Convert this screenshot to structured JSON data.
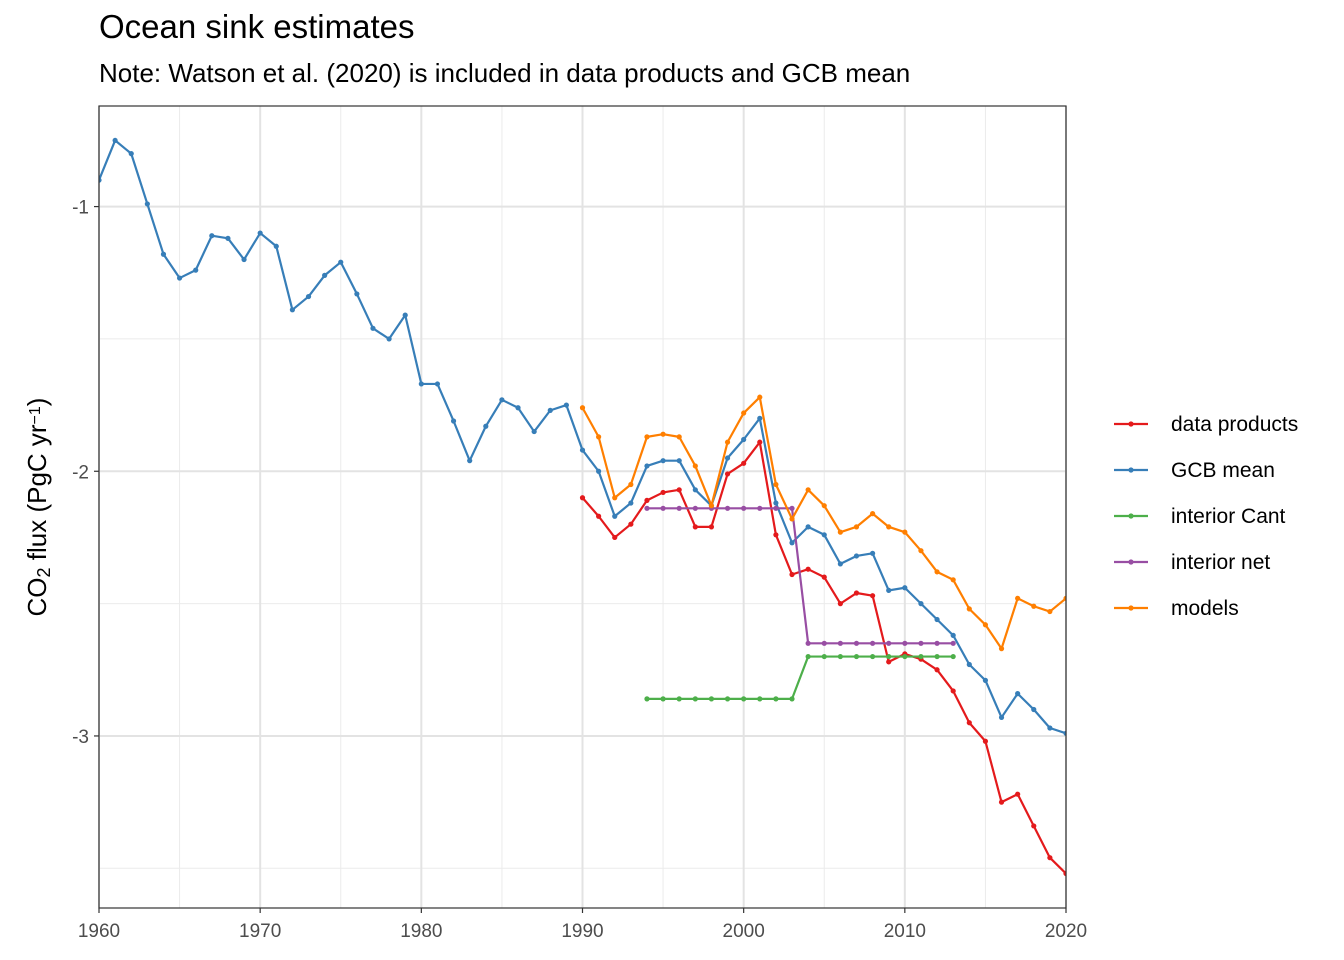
{
  "chart_data": {
    "type": "line",
    "title": "Ocean sink estimates",
    "subtitle": "Note: Watson et al. (2020) is included in data products and GCB mean",
    "xlabel": "",
    "ylabel": {
      "prefix": "CO",
      "sub": "2",
      "middle": " flux (PgC yr",
      "sup": "−1",
      "suffix": ")"
    },
    "xlim": [
      1960,
      2020
    ],
    "ylim": [
      -3.65,
      -0.62
    ],
    "x_ticks": [
      1960,
      1970,
      1980,
      1990,
      2000,
      2010,
      2020
    ],
    "x_tick_labels": [
      "1960",
      "1970",
      "1980",
      "1990",
      "2000",
      "2010",
      "2020"
    ],
    "y_ticks": [
      -1,
      -2,
      -3
    ],
    "y_tick_labels": [
      "-1",
      "-2",
      "-3"
    ],
    "y_minor": [
      -0.5,
      -1.5,
      -2.5,
      -3.5
    ],
    "grid": true,
    "legend_position": "right",
    "series": [
      {
        "name": "data products",
        "color": "#e41a1c",
        "x": [
          1990,
          1991,
          1992,
          1993,
          1994,
          1995,
          1996,
          1997,
          1998,
          1999,
          2000,
          2001,
          2002,
          2003,
          2004,
          2005,
          2006,
          2007,
          2008,
          2009,
          2010,
          2011,
          2012,
          2013,
          2014,
          2015,
          2016,
          2017,
          2018,
          2019,
          2020
        ],
        "y": [
          -2.1,
          -2.17,
          -2.25,
          -2.2,
          -2.11,
          -2.08,
          -2.07,
          -2.21,
          -2.21,
          -2.01,
          -1.97,
          -1.89,
          -2.24,
          -2.39,
          -2.37,
          -2.4,
          -2.5,
          -2.46,
          -2.47,
          -2.72,
          -2.69,
          -2.71,
          -2.75,
          -2.83,
          -2.95,
          -3.02,
          -3.25,
          -3.22,
          -3.34,
          -3.46,
          -3.52
        ]
      },
      {
        "name": "GCB mean",
        "color": "#377eb8",
        "x": [
          1959,
          1960,
          1961,
          1962,
          1963,
          1964,
          1965,
          1966,
          1967,
          1968,
          1969,
          1970,
          1971,
          1972,
          1973,
          1974,
          1975,
          1976,
          1977,
          1978,
          1979,
          1980,
          1981,
          1982,
          1983,
          1984,
          1985,
          1986,
          1987,
          1988,
          1989,
          1990,
          1991,
          1992,
          1993,
          1994,
          1995,
          1996,
          1997,
          1998,
          1999,
          2000,
          2001,
          2002,
          2003,
          2004,
          2005,
          2006,
          2007,
          2008,
          2009,
          2010,
          2011,
          2012,
          2013,
          2014,
          2015,
          2016,
          2017,
          2018,
          2019,
          2020
        ],
        "y": [
          -0.95,
          -0.9,
          -0.75,
          -0.8,
          -0.99,
          -1.18,
          -1.27,
          -1.24,
          -1.11,
          -1.12,
          -1.2,
          -1.1,
          -1.15,
          -1.39,
          -1.34,
          -1.26,
          -1.21,
          -1.33,
          -1.46,
          -1.5,
          -1.41,
          -1.67,
          -1.67,
          -1.81,
          -1.96,
          -1.83,
          -1.73,
          -1.76,
          -1.85,
          -1.77,
          -1.75,
          -1.92,
          -2.0,
          -2.17,
          -2.12,
          -1.98,
          -1.96,
          -1.96,
          -2.07,
          -2.13,
          -1.95,
          -1.88,
          -1.8,
          -2.12,
          -2.27,
          -2.21,
          -2.24,
          -2.35,
          -2.32,
          -2.31,
          -2.45,
          -2.44,
          -2.5,
          -2.56,
          -2.62,
          -2.73,
          -2.79,
          -2.93,
          -2.84,
          -2.9,
          -2.97,
          -2.99
        ]
      },
      {
        "name": "interior Cant",
        "color": "#4daf4a",
        "x": [
          1994,
          1995,
          1996,
          1997,
          1998,
          1999,
          2000,
          2001,
          2002,
          2003,
          2004,
          2005,
          2006,
          2007,
          2008,
          2009,
          2010,
          2011,
          2012,
          2013
        ],
        "y": [
          -2.86,
          -2.86,
          -2.86,
          -2.86,
          -2.86,
          -2.86,
          -2.86,
          -2.86,
          -2.86,
          -2.86,
          -2.7,
          -2.7,
          -2.7,
          -2.7,
          -2.7,
          -2.7,
          -2.7,
          -2.7,
          -2.7,
          -2.7
        ]
      },
      {
        "name": "interior net",
        "color": "#984ea3",
        "x": [
          1994,
          1995,
          1996,
          1997,
          1998,
          1999,
          2000,
          2001,
          2002,
          2003,
          2004,
          2005,
          2006,
          2007,
          2008,
          2009,
          2010,
          2011,
          2012,
          2013
        ],
        "y": [
          -2.14,
          -2.14,
          -2.14,
          -2.14,
          -2.14,
          -2.14,
          -2.14,
          -2.14,
          -2.14,
          -2.14,
          -2.65,
          -2.65,
          -2.65,
          -2.65,
          -2.65,
          -2.65,
          -2.65,
          -2.65,
          -2.65,
          -2.65
        ]
      },
      {
        "name": "models",
        "color": "#ff7f00",
        "x": [
          1990,
          1991,
          1992,
          1993,
          1994,
          1995,
          1996,
          1997,
          1998,
          1999,
          2000,
          2001,
          2002,
          2003,
          2004,
          2005,
          2006,
          2007,
          2008,
          2009,
          2010,
          2011,
          2012,
          2013,
          2014,
          2015,
          2016,
          2017,
          2018,
          2019,
          2020,
          2021
        ],
        "y": [
          -1.76,
          -1.87,
          -2.1,
          -2.05,
          -1.87,
          -1.86,
          -1.87,
          -1.98,
          -2.13,
          -1.89,
          -1.78,
          -1.72,
          -2.05,
          -2.18,
          -2.07,
          -2.13,
          -2.23,
          -2.21,
          -2.16,
          -2.21,
          -2.23,
          -2.3,
          -2.38,
          -2.41,
          -2.52,
          -2.58,
          -2.67,
          -2.48,
          -2.51,
          -2.53,
          -2.48,
          -2.44
        ]
      }
    ]
  }
}
